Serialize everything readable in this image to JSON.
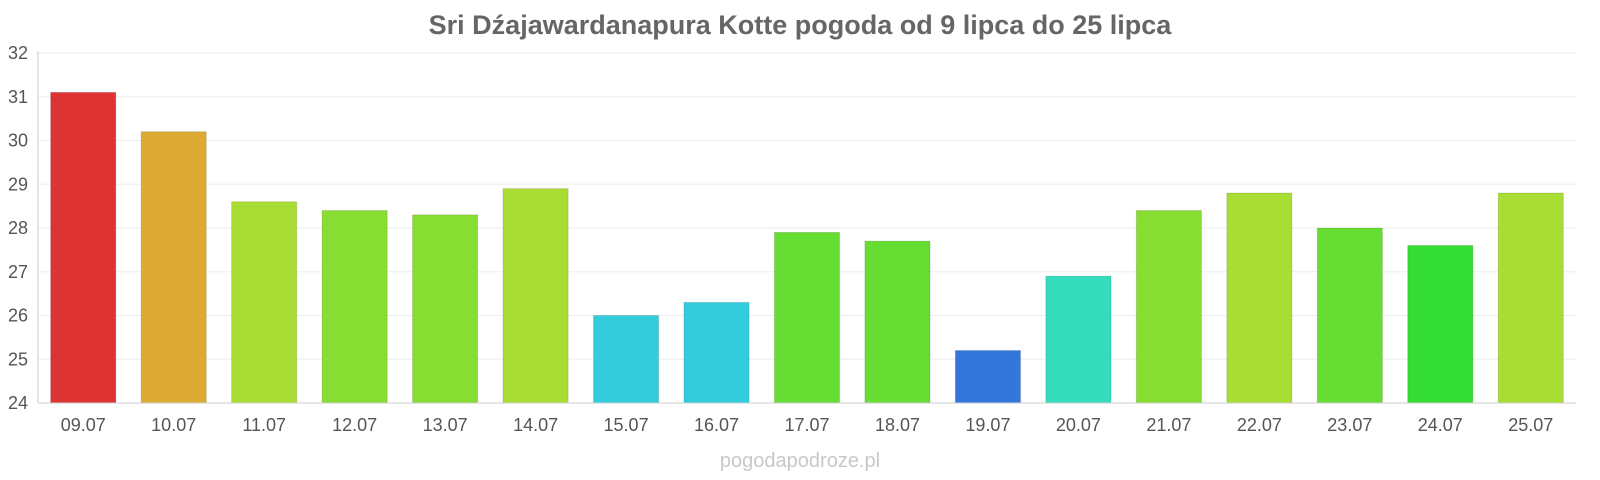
{
  "chart_data": {
    "type": "bar",
    "title": "Sri Dźajawardanapura Kotte pogoda od 9 lipca do 25 lipca",
    "xlabel": "",
    "ylabel": "",
    "categories": [
      "09.07",
      "10.07",
      "11.07",
      "12.07",
      "13.07",
      "14.07",
      "15.07",
      "16.07",
      "17.07",
      "18.07",
      "19.07",
      "20.07",
      "21.07",
      "22.07",
      "23.07",
      "24.07",
      "25.07"
    ],
    "values": [
      31.1,
      30.2,
      28.6,
      28.4,
      28.3,
      28.9,
      26.0,
      26.3,
      27.9,
      27.7,
      25.2,
      26.9,
      28.4,
      28.8,
      28.0,
      27.6,
      28.8
    ],
    "colors": [
      "#dd3333",
      "#ddaa33",
      "#aadd33",
      "#88dd33",
      "#88dd33",
      "#aadd33",
      "#33ccdd",
      "#33ccdd",
      "#66dd33",
      "#66dd33",
      "#3377dd",
      "#33ddbb",
      "#88dd33",
      "#aadd33",
      "#66dd33",
      "#33dd33",
      "#aadd33"
    ],
    "ylim": [
      24,
      32
    ],
    "yticks": [
      24,
      25,
      26,
      27,
      28,
      29,
      30,
      31,
      32
    ],
    "grid": true,
    "legend": "none"
  },
  "watermark": "pogodapodroze.pl"
}
